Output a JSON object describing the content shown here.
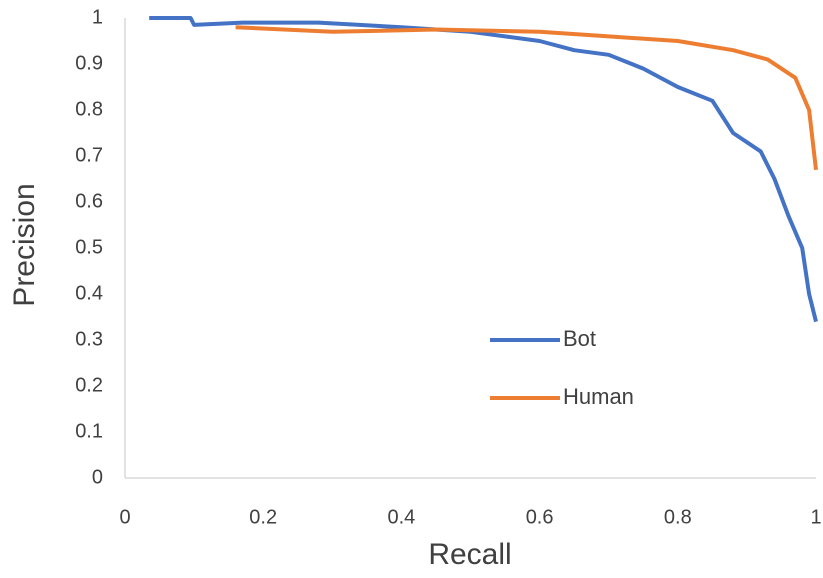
{
  "chart_data": {
    "type": "line",
    "x_label": "Recall",
    "y_label": "Precision",
    "xlim": [
      0,
      1
    ],
    "ylim": [
      0,
      1
    ],
    "xticks": [
      0,
      0.2,
      0.4,
      0.6,
      0.8,
      1
    ],
    "yticks": [
      0,
      0.1,
      0.2,
      0.3,
      0.4,
      0.5,
      0.6,
      0.7,
      0.8,
      0.9,
      1
    ],
    "legend": "center-right",
    "series": [
      {
        "name": "Bot",
        "color": "#4472c4",
        "x": [
          0.035,
          0.095,
          0.1,
          0.17,
          0.28,
          0.4,
          0.5,
          0.55,
          0.6,
          0.65,
          0.7,
          0.75,
          0.8,
          0.85,
          0.88,
          0.92,
          0.94,
          0.96,
          0.98,
          0.99,
          1
        ],
        "values": [
          1,
          1,
          0.985,
          0.99,
          0.99,
          0.98,
          0.97,
          0.96,
          0.95,
          0.93,
          0.92,
          0.89,
          0.85,
          0.82,
          0.75,
          0.71,
          0.65,
          0.57,
          0.5,
          0.4,
          0.34
        ]
      },
      {
        "name": "Human",
        "color": "#ed7d31",
        "x": [
          0.16,
          0.3,
          0.45,
          0.6,
          0.7,
          0.8,
          0.88,
          0.93,
          0.97,
          0.99,
          1
        ],
        "values": [
          0.98,
          0.97,
          0.975,
          0.97,
          0.96,
          0.95,
          0.93,
          0.91,
          0.87,
          0.8,
          0.67
        ]
      }
    ]
  }
}
